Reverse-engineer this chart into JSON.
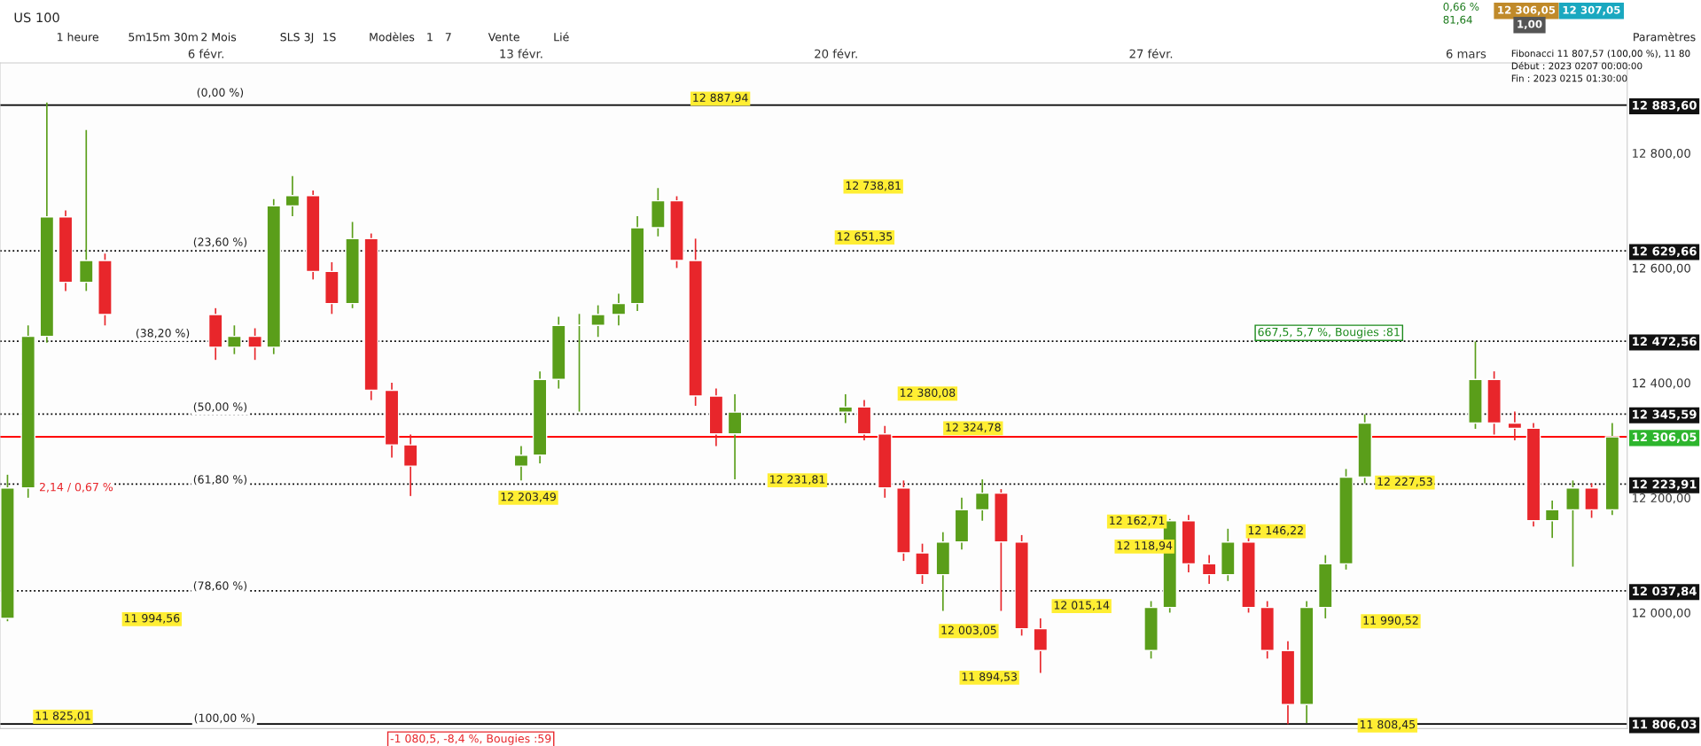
{
  "chart_data": {
    "type": "candlestick",
    "title": "US 100",
    "x": [
      "2023-02-01T14:00",
      "2023-02-02T01:00",
      "2023-02-02T11:00",
      "2023-02-02T21:00",
      "2023-02-03T08:00",
      "2023-02-03T18:00",
      "2023-02-06T05:00",
      "2023-02-06T15:00",
      "2023-02-07T02:00",
      "2023-02-07T12:00",
      "2023-02-07T22:00",
      "2023-02-08T09:00",
      "2023-02-08T19:00",
      "2023-02-09T06:00",
      "2023-02-09T16:00",
      "2023-02-10T03:00",
      "2023-02-10T13:00",
      "2023-02-13T00:00",
      "2023-02-13T10:00",
      "2023-02-13T20:00",
      "2023-02-14T07:00",
      "2023-02-14T17:00",
      "2023-02-15T04:00",
      "2023-02-15T14:00",
      "2023-02-16T01:00",
      "2023-02-16T11:00",
      "2023-02-16T21:00",
      "2023-02-17T08:00",
      "2023-02-17T18:00",
      "2023-02-20T05:00",
      "2023-02-20T15:00",
      "2023-02-21T02:00",
      "2023-02-21T12:00",
      "2023-02-21T22:00",
      "2023-02-22T09:00",
      "2023-02-22T19:00",
      "2023-02-23T06:00",
      "2023-02-23T16:00",
      "2023-02-24T03:00",
      "2023-02-24T13:00",
      "2023-02-27T00:00",
      "2023-02-27T10:00",
      "2023-02-27T20:00",
      "2023-02-28T07:00",
      "2023-02-28T17:00",
      "2023-03-01T04:00",
      "2023-03-01T14:00",
      "2023-03-02T01:00",
      "2023-03-02T11:00",
      "2023-03-02T21:00",
      "2023-03-03T08:00",
      "2023-03-03T18:00",
      "2023-03-06T05:00",
      "2023-03-06T15:00",
      "2023-03-07T02:00",
      "2023-03-07T12:00",
      "2023-03-07T22:00",
      "2023-03-08T09:00",
      "2023-03-08T19:00",
      "2023-03-09T06:00"
    ],
    "ohlc": [
      [
        11990,
        12240,
        11985,
        12217
      ],
      [
        12217,
        12500,
        12200,
        12481
      ],
      [
        12481,
        12888,
        12470,
        12689
      ],
      [
        12689,
        12700,
        12560,
        12575
      ],
      [
        12575,
        12840,
        12560,
        12613
      ],
      [
        12613,
        12625,
        12500,
        12519
      ],
      [
        12519,
        12530,
        12440,
        12462
      ],
      [
        12462,
        12500,
        12450,
        12481
      ],
      [
        12481,
        12495,
        12440,
        12462
      ],
      [
        12462,
        12720,
        12450,
        12708
      ],
      [
        12708,
        12760,
        12690,
        12726
      ],
      [
        12726,
        12735,
        12580,
        12594
      ],
      [
        12594,
        12610,
        12520,
        12538
      ],
      [
        12538,
        12680,
        12530,
        12651
      ],
      [
        12651,
        12660,
        12370,
        12387
      ],
      [
        12387,
        12400,
        12270,
        12292
      ],
      [
        12292,
        12310,
        12203,
        12255
      ],
      [
        12255,
        12290,
        12230,
        12274
      ],
      [
        12274,
        12420,
        12260,
        12406
      ],
      [
        12406,
        12515,
        12390,
        12500
      ],
      [
        12500,
        12520,
        12350,
        12500
      ],
      [
        12500,
        12535,
        12480,
        12519
      ],
      [
        12519,
        12555,
        12500,
        12538
      ],
      [
        12538,
        12690,
        12525,
        12670
      ],
      [
        12670,
        12739,
        12655,
        12717
      ],
      [
        12717,
        12725,
        12600,
        12613
      ],
      [
        12613,
        12651,
        12360,
        12377
      ],
      [
        12377,
        12390,
        12290,
        12311
      ],
      [
        12311,
        12380,
        12232,
        12349
      ],
      [
        12349,
        12380,
        12330,
        12358
      ],
      [
        12358,
        12370,
        12300,
        12311
      ],
      [
        12311,
        12325,
        12200,
        12217
      ],
      [
        12217,
        12230,
        12090,
        12104
      ],
      [
        12104,
        12120,
        12050,
        12066
      ],
      [
        12066,
        12140,
        12003,
        12123
      ],
      [
        12123,
        12200,
        12110,
        12179
      ],
      [
        12179,
        12232,
        12160,
        12208
      ],
      [
        12208,
        12215,
        12003,
        12123
      ],
      [
        12123,
        12135,
        11960,
        11972
      ],
      [
        11972,
        11990,
        11895,
        11934
      ],
      [
        11934,
        12020,
        11920,
        12009
      ],
      [
        12009,
        12163,
        12000,
        12160
      ],
      [
        12160,
        12170,
        12070,
        12085
      ],
      [
        12085,
        12100,
        12050,
        12066
      ],
      [
        12066,
        12146,
        12055,
        12123
      ],
      [
        12123,
        12130,
        12000,
        12009
      ],
      [
        12009,
        12020,
        11920,
        11934
      ],
      [
        11934,
        11950,
        11806,
        11840
      ],
      [
        11840,
        12020,
        11808,
        12009
      ],
      [
        12009,
        12100,
        11990,
        12085
      ],
      [
        12085,
        12250,
        12075,
        12236
      ],
      [
        12236,
        12345,
        12225,
        12330
      ],
      [
        12330,
        12472,
        12320,
        12406
      ],
      [
        12406,
        12420,
        12310,
        12330
      ],
      [
        12330,
        12350,
        12300,
        12321
      ],
      [
        12321,
        12330,
        12150,
        12160
      ],
      [
        12160,
        12195,
        12130,
        12179
      ],
      [
        12179,
        12230,
        12080,
        12217
      ],
      [
        12217,
        12225,
        12165,
        12179
      ],
      [
        12179,
        12330,
        12170,
        12306.05
      ]
    ],
    "xlim": [
      "2023-02-01T10:00",
      "2023-03-09T14:00"
    ],
    "xticks": [
      {
        "value": "2023-02-06",
        "label": "6 févr."
      },
      {
        "value": "2023-02-13",
        "label": "13 févr."
      },
      {
        "value": "2023-02-20",
        "label": "20 févr."
      },
      {
        "value": "2023-02-27",
        "label": "27 févr."
      },
      {
        "value": "2023-03-06",
        "label": "6 mars"
      }
    ],
    "ylim": [
      11798,
      12957
    ],
    "yticks": [
      {
        "value": 12000,
        "label": "12 000,00"
      },
      {
        "value": 12200,
        "label": "12 200,00"
      },
      {
        "value": 12400,
        "label": "12 400,00"
      },
      {
        "value": 12600,
        "label": "12 600,00"
      },
      {
        "value": 12800,
        "label": "12 800,00"
      },
      {
        "value": 12883.6,
        "label": "12 883,60"
      },
      {
        "value": 12629.66,
        "label": "12 629,66"
      },
      {
        "value": 12472.56,
        "label": "12 472,56"
      },
      {
        "value": 12345.59,
        "label": "12 345,59"
      },
      {
        "value": 12306.05,
        "label": "12 306,05"
      },
      {
        "value": 12223.91,
        "label": "12 223,91"
      },
      {
        "value": 12037.84,
        "label": "12 037,84"
      },
      {
        "value": 11806.03,
        "label": "11 806,03"
      }
    ],
    "ref_lines": [
      {
        "axis": "y",
        "value": 12883.6,
        "color": "#000000",
        "line_style": "solid"
      },
      {
        "axis": "y",
        "value": 12629.66,
        "color": "#000000",
        "line_style": "dotted"
      },
      {
        "axis": "y",
        "value": 12472.56,
        "color": "#000000",
        "line_style": "dotted"
      },
      {
        "axis": "y",
        "value": 12345.59,
        "color": "#000000",
        "line_style": "dotted"
      },
      {
        "axis": "y",
        "value": 12306.05,
        "color": "#ff0000",
        "line_style": "solid"
      },
      {
        "axis": "y",
        "value": 12223.91,
        "color": "#000000",
        "line_style": "dotted"
      },
      {
        "axis": "y",
        "value": 12037.84,
        "color": "#000000",
        "line_style": "dotted"
      },
      {
        "axis": "y",
        "value": 11806.03,
        "color": "#000000",
        "line_style": "solid"
      }
    ],
    "annotations": [
      "12 887,94",
      "12 738,81",
      "12 651,35",
      "12 380,08",
      "12 324,78",
      "12 231,81",
      "12 203,49",
      "11 994,56",
      "11 825,01",
      "12 227,53",
      "12 162,71",
      "12 146,22",
      "12 118,94",
      "12 015,14",
      "12 003,05",
      "11 990,52",
      "11 894,53",
      "11 808,45",
      "-1 080,5, -8,4 %, Bougies :59",
      "667,5, 5,7 %, Bougies :81",
      "2,14 / 0,67 %",
      "(0,00 %)",
      "(23,60 %)",
      "(38,20 %)",
      "(50,00 %)",
      "(61,80 %)",
      "(78,60 %)",
      "(100,00 %)",
      "1 heure",
      "5m",
      "15m",
      "30m",
      "2 Mois",
      "SLS",
      "3J",
      "1S",
      "Modèles",
      "1",
      "7",
      "Vente",
      "Lié",
      "Paramètres",
      "0,66 %",
      "81,64",
      "12 306,05",
      "12 307,05",
      "1,00",
      "Fibonacci 11 807,57 (100,00 %), 11 80",
      "Début : 2023 0207 00:00:00",
      "Fin : 2023 0215 01:30:00"
    ],
    "grid": false
  }
}
